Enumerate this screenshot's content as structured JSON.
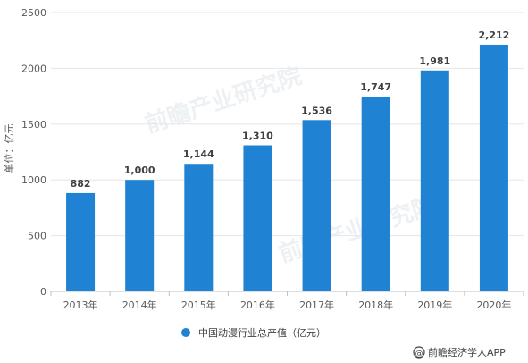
{
  "chart_data": {
    "type": "bar",
    "categories": [
      "2013年",
      "2014年",
      "2015年",
      "2016年",
      "2017年",
      "2018年",
      "2019年",
      "2020年"
    ],
    "series": [
      {
        "name": "中国动漫行业总产值（亿元）",
        "values": [
          882,
          1000,
          1144,
          1310,
          1536,
          1747,
          1981,
          2212
        ]
      }
    ],
    "data_labels": [
      "882",
      "1,000",
      "1,144",
      "1,310",
      "1,536",
      "1,747",
      "1,981",
      "2,212"
    ],
    "ylabel": "单位：亿元",
    "xlabel": "",
    "ylim": [
      0,
      2500
    ],
    "yticks": [
      0,
      500,
      1000,
      1500,
      2000,
      2500
    ],
    "grid": true,
    "legend_position": "bottom",
    "bar_color": "#1f82d2"
  },
  "watermark": "前瞻产业研究院",
  "source": "前瞻经济学人APP"
}
